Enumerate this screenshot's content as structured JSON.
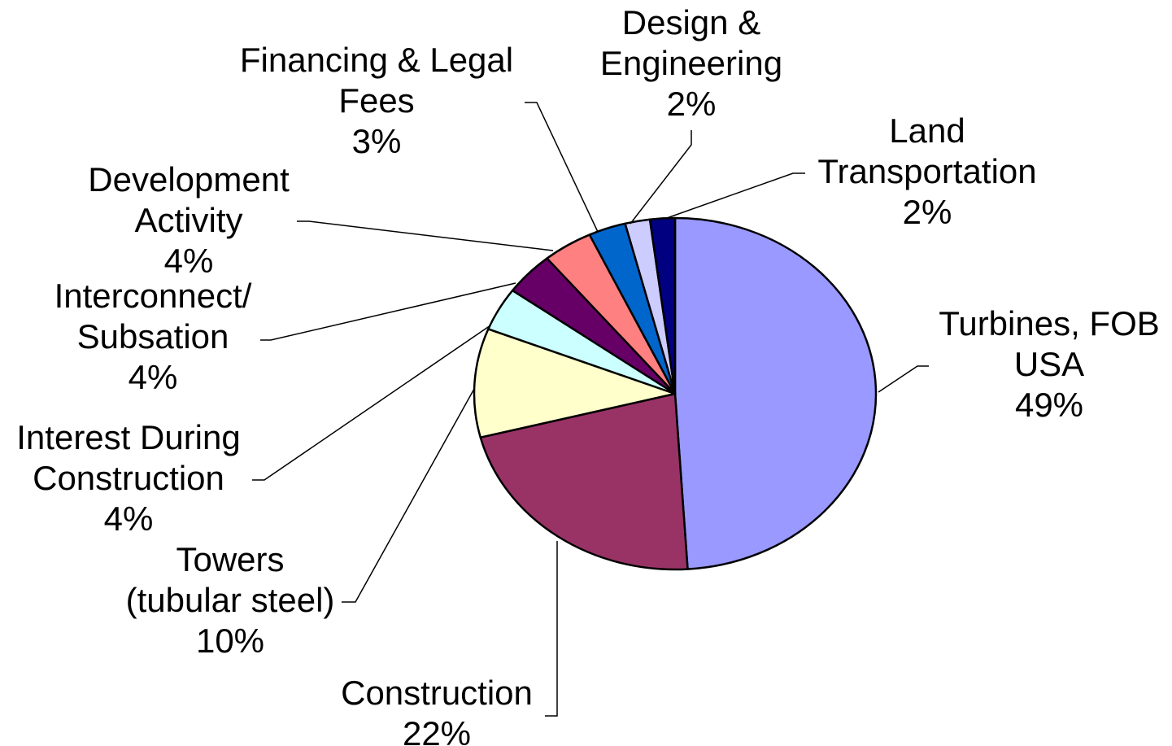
{
  "chart_data": {
    "type": "pie",
    "categories": [
      "Turbines, FOB USA",
      "Construction",
      "Towers (tubular steel)",
      "Interest During Construction",
      "Interconnect/ Subsation",
      "Development Activity",
      "Financing & Legal Fees",
      "Design & Engineering",
      "Land Transportation"
    ],
    "values": [
      49,
      22,
      10,
      4,
      4,
      4,
      3,
      2,
      2
    ],
    "value_labels": [
      "49%",
      "22%",
      "10%",
      "4%",
      "4%",
      "4%",
      "3%",
      "2%",
      "2%"
    ],
    "colors": [
      "#9999ff",
      "#993366",
      "#ffffcc",
      "#ccffff",
      "#660066",
      "#ff8080",
      "#0066cc",
      "#ccccff",
      "#000080"
    ]
  }
}
